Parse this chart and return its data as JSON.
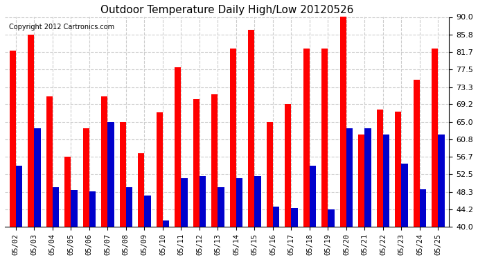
{
  "title": "Outdoor Temperature Daily High/Low 20120526",
  "copyright": "Copyright 2012 Cartronics.com",
  "dates": [
    "05/02",
    "05/03",
    "05/04",
    "05/05",
    "05/06",
    "05/07",
    "05/08",
    "05/09",
    "05/10",
    "05/11",
    "05/12",
    "05/13",
    "05/14",
    "05/15",
    "05/16",
    "05/17",
    "05/18",
    "05/19",
    "05/20",
    "05/21",
    "05/22",
    "05/23",
    "05/24",
    "05/25"
  ],
  "highs": [
    82.0,
    85.8,
    71.0,
    56.7,
    63.5,
    71.0,
    65.0,
    57.5,
    67.2,
    78.0,
    70.5,
    71.5,
    82.5,
    87.0,
    65.0,
    69.2,
    82.5,
    82.5,
    91.0,
    62.0,
    68.0,
    67.5,
    75.0,
    82.5
  ],
  "lows": [
    54.5,
    63.5,
    49.5,
    48.8,
    48.5,
    65.0,
    49.5,
    47.5,
    41.5,
    51.5,
    52.0,
    49.5,
    51.5,
    52.0,
    44.8,
    44.5,
    54.5,
    44.2,
    63.5,
    63.5,
    62.0,
    55.0,
    49.0,
    62.0
  ],
  "high_color": "#ff0000",
  "low_color": "#0000cc",
  "bg_color": "#ffffff",
  "plot_bg_color": "#ffffff",
  "grid_color": "#cccccc",
  "yticks": [
    40.0,
    44.2,
    48.3,
    52.5,
    56.7,
    60.8,
    65.0,
    69.2,
    73.3,
    77.5,
    81.7,
    85.8,
    90.0
  ],
  "ymin": 40.0,
  "ymax": 90.0,
  "bar_width": 0.35
}
